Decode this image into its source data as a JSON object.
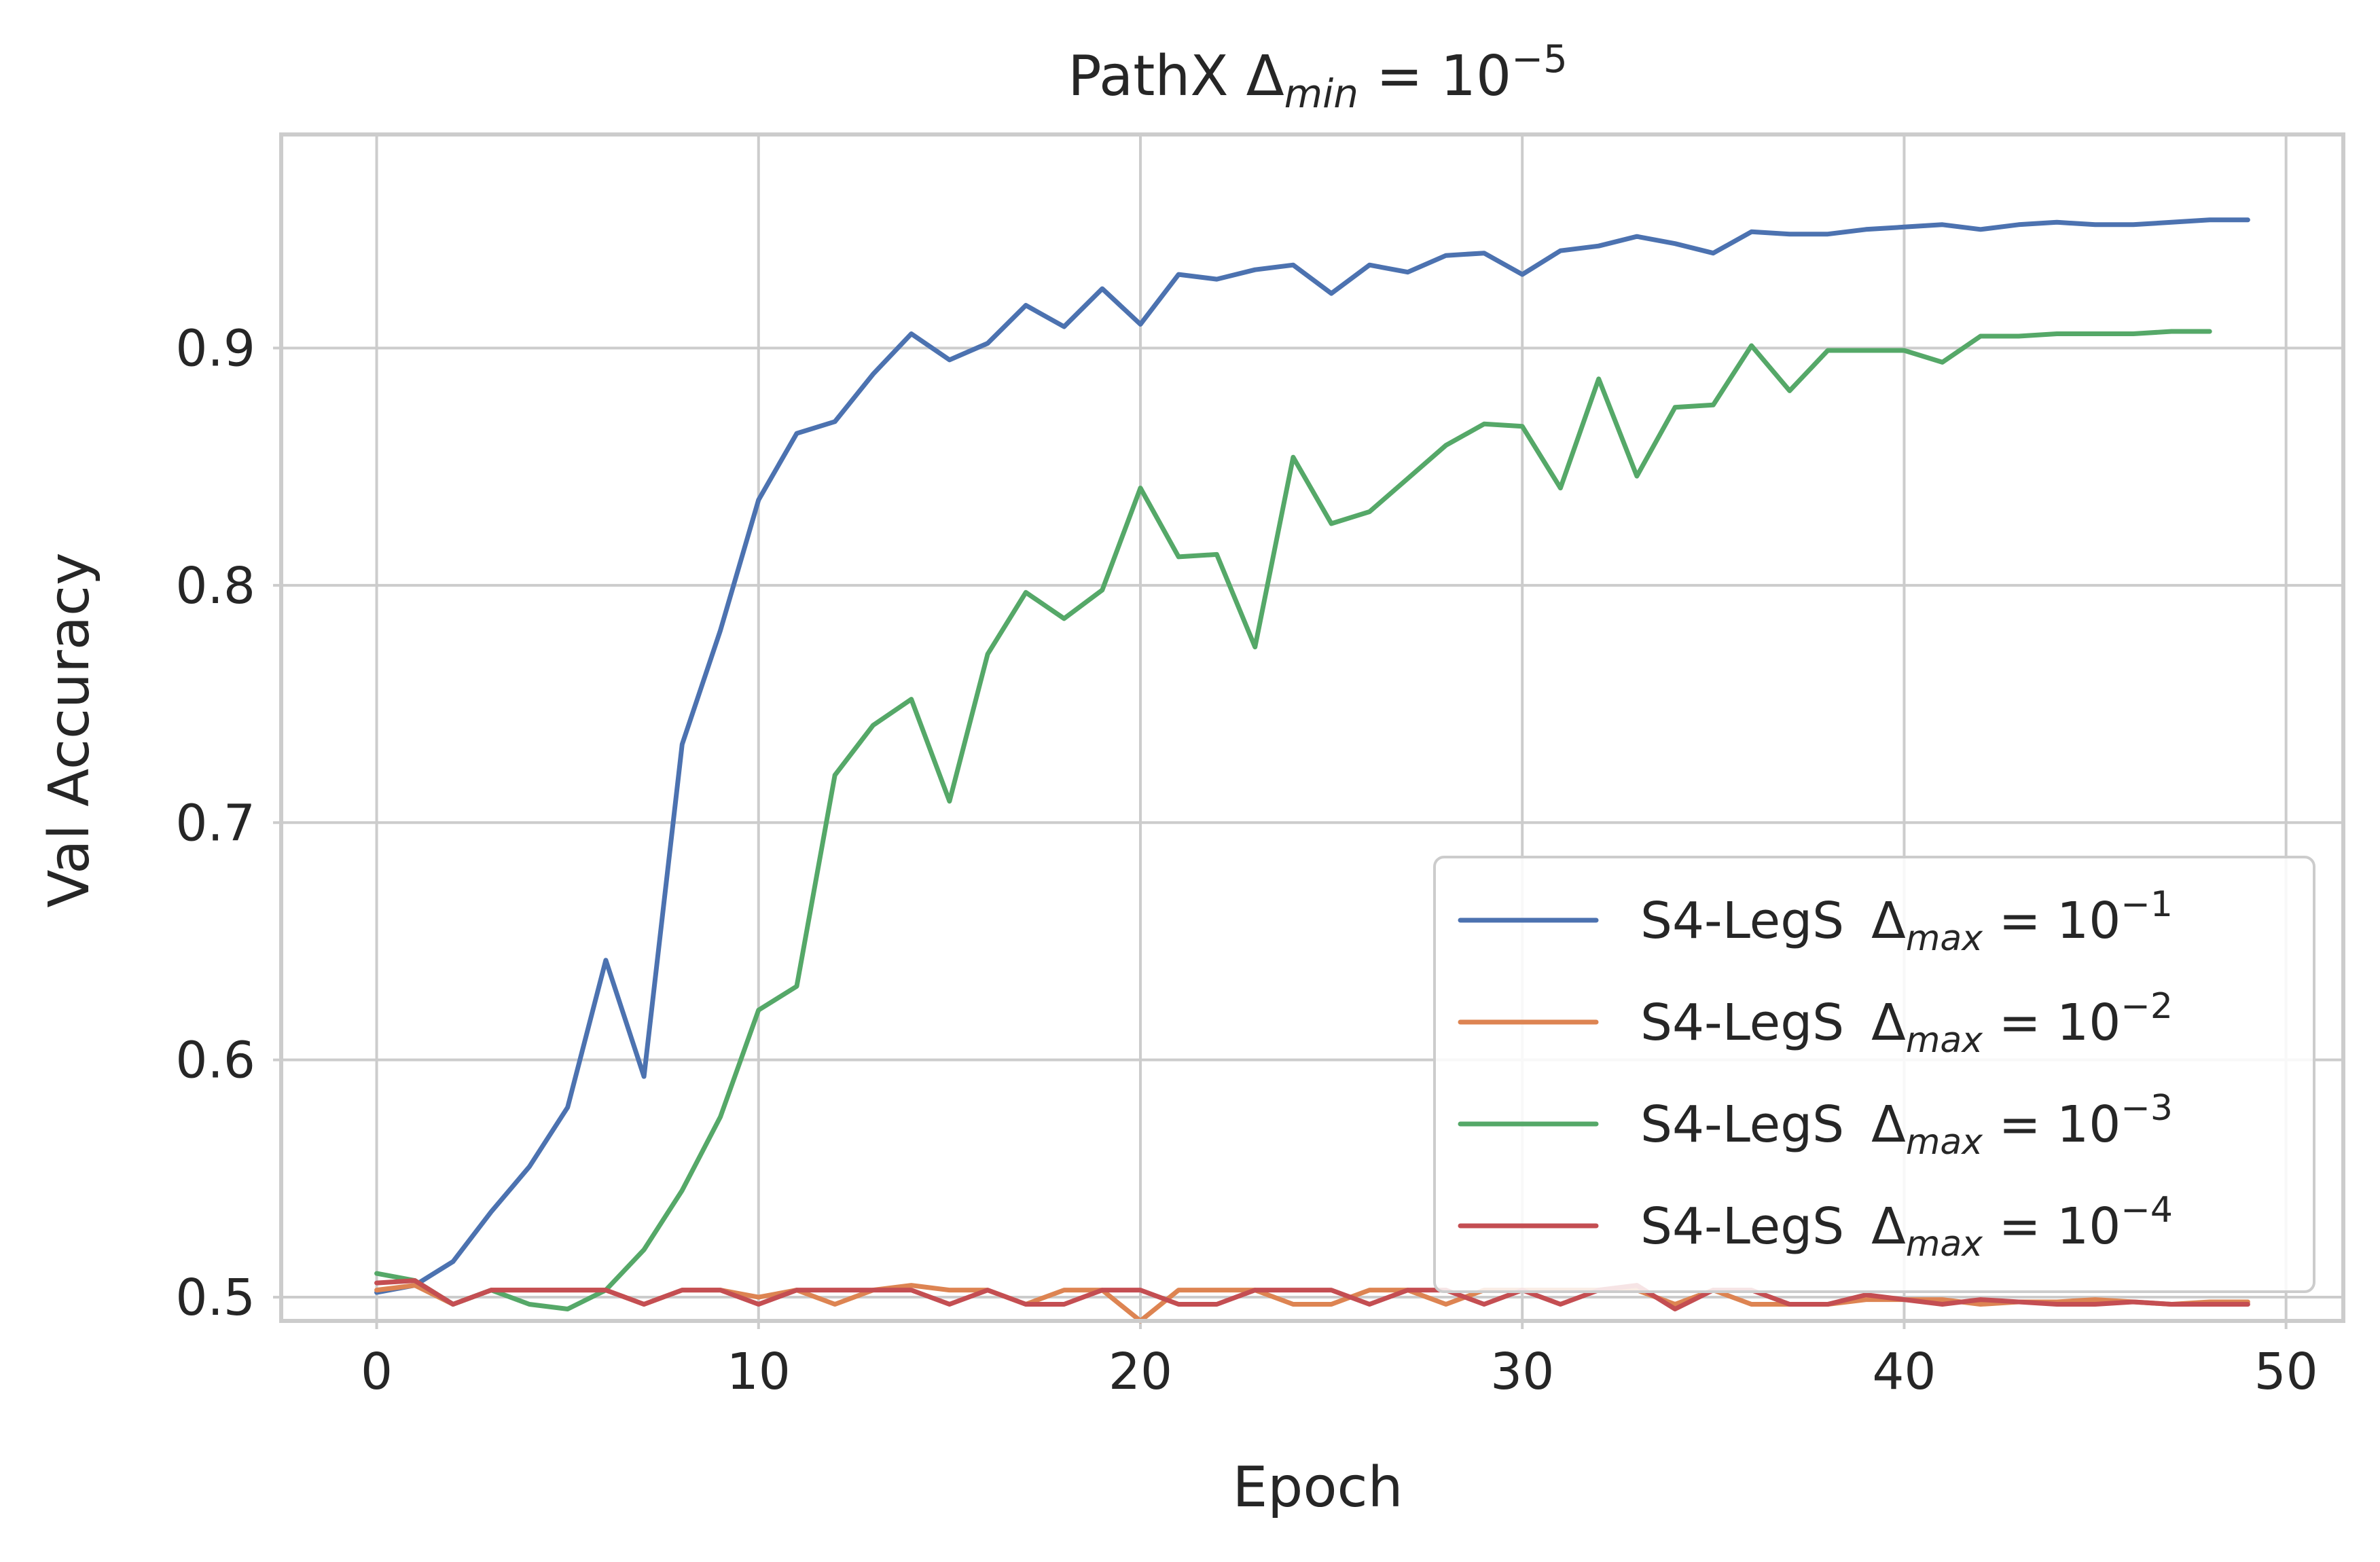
{
  "chart_data": {
    "type": "line",
    "title": "PathX Δ",
    "title_sub": "min",
    "title_eq": " = 10",
    "title_exp": "−5",
    "xlabel": "Epoch",
    "ylabel": "Val Accuracy",
    "xlim": [
      -2.5,
      51.5
    ],
    "ylim": [
      0.49,
      0.99
    ],
    "xticks": [
      0,
      10,
      20,
      30,
      40,
      50
    ],
    "xtick_labels": [
      "0",
      "10",
      "20",
      "30",
      "40",
      "50"
    ],
    "yticks": [
      0.5,
      0.6,
      0.7,
      0.8,
      0.9
    ],
    "ytick_labels": [
      "0.5",
      "0.6",
      "0.7",
      "0.8",
      "0.9"
    ],
    "grid": true,
    "legend_position": "bottom-right",
    "series": [
      {
        "name": "S4-LegS",
        "label_delta": "Δ",
        "label_sub": "max",
        "label_eq": " = 10",
        "label_exp": "−1",
        "color": "#4c72b0",
        "x": [
          0,
          1,
          2,
          3,
          4,
          5,
          6,
          7,
          8,
          9,
          10,
          11,
          12,
          13,
          14,
          15,
          16,
          17,
          18,
          19,
          20,
          21,
          22,
          23,
          24,
          25,
          26,
          27,
          28,
          29,
          30,
          31,
          32,
          33,
          34,
          35,
          36,
          37,
          38,
          39,
          40,
          41,
          42,
          43,
          44,
          45,
          46,
          47,
          48,
          49
        ],
        "y": [
          0.502,
          0.505,
          0.515,
          0.536,
          0.555,
          0.58,
          0.642,
          0.593,
          0.733,
          0.781,
          0.836,
          0.864,
          0.869,
          0.889,
          0.906,
          0.895,
          0.902,
          0.918,
          0.909,
          0.925,
          0.91,
          0.931,
          0.929,
          0.933,
          0.935,
          0.923,
          0.935,
          0.932,
          0.939,
          0.94,
          0.931,
          0.941,
          0.943,
          0.947,
          0.944,
          0.94,
          0.949,
          0.948,
          0.948,
          0.95,
          0.951,
          0.952,
          0.95,
          0.952,
          0.953,
          0.952,
          0.952,
          0.953,
          0.954,
          0.954
        ]
      },
      {
        "name": "S4-LegS",
        "label_delta": "Δ",
        "label_sub": "max",
        "label_eq": " = 10",
        "label_exp": "−2",
        "color": "#dd8452",
        "x": [
          0,
          1,
          2,
          3,
          4,
          5,
          6,
          7,
          8,
          9,
          10,
          11,
          12,
          13,
          14,
          15,
          16,
          17,
          18,
          19,
          20,
          21,
          22,
          23,
          24,
          25,
          26,
          27,
          28,
          29,
          30,
          31,
          32,
          33,
          34,
          35,
          36,
          37,
          38,
          39,
          40,
          41,
          42,
          43,
          44,
          45,
          46,
          47,
          48,
          49
        ],
        "y": [
          0.503,
          0.505,
          0.497,
          0.503,
          0.503,
          0.503,
          0.503,
          0.497,
          0.503,
          0.503,
          0.5,
          0.503,
          0.497,
          0.503,
          0.505,
          0.503,
          0.503,
          0.497,
          0.503,
          0.503,
          0.49,
          0.503,
          0.503,
          0.503,
          0.497,
          0.497,
          0.503,
          0.503,
          0.497,
          0.503,
          0.503,
          0.503,
          0.503,
          0.503,
          0.497,
          0.503,
          0.497,
          0.497,
          0.497,
          0.499,
          0.499,
          0.499,
          0.497,
          0.498,
          0.498,
          0.499,
          0.498,
          0.497,
          0.498,
          0.498
        ]
      },
      {
        "name": "S4-LegS",
        "label_delta": "Δ",
        "label_sub": "max",
        "label_eq": " = 10",
        "label_exp": "−3",
        "color": "#55a868",
        "x": [
          0,
          1,
          2,
          3,
          4,
          5,
          6,
          7,
          8,
          9,
          10,
          11,
          12,
          13,
          14,
          15,
          16,
          17,
          18,
          19,
          20,
          21,
          22,
          23,
          24,
          25,
          26,
          27,
          28,
          29,
          30,
          31,
          32,
          33,
          34,
          35,
          36,
          37,
          38,
          39,
          40,
          41,
          42,
          43,
          44,
          45,
          46,
          47,
          48
        ],
        "y": [
          0.51,
          0.507,
          0.497,
          0.503,
          0.497,
          0.495,
          0.503,
          0.52,
          0.545,
          0.576,
          0.621,
          0.631,
          0.72,
          0.741,
          0.752,
          0.709,
          0.771,
          0.797,
          0.786,
          0.798,
          0.841,
          0.812,
          0.813,
          0.774,
          0.854,
          0.826,
          0.831,
          0.845,
          0.859,
          0.868,
          0.867,
          0.841,
          0.887,
          0.846,
          0.875,
          0.876,
          0.901,
          0.882,
          0.899,
          0.899,
          0.899,
          0.894,
          0.905,
          0.905,
          0.906,
          0.906,
          0.906,
          0.907,
          0.907
        ]
      },
      {
        "name": "S4-LegS",
        "label_delta": "Δ",
        "label_sub": "max",
        "label_eq": " = 10",
        "label_exp": "−4",
        "color": "#c44e52",
        "x": [
          0,
          1,
          2,
          3,
          4,
          5,
          6,
          7,
          8,
          9,
          10,
          11,
          12,
          13,
          14,
          15,
          16,
          17,
          18,
          19,
          20,
          21,
          22,
          23,
          24,
          25,
          26,
          27,
          28,
          29,
          30,
          31,
          32,
          33,
          34,
          35,
          36,
          37,
          38,
          39,
          40,
          41,
          42,
          43,
          44,
          45,
          46,
          47,
          48,
          49
        ],
        "y": [
          0.506,
          0.507,
          0.497,
          0.503,
          0.503,
          0.503,
          0.503,
          0.497,
          0.503,
          0.503,
          0.497,
          0.503,
          0.503,
          0.503,
          0.503,
          0.497,
          0.503,
          0.497,
          0.497,
          0.503,
          0.503,
          0.497,
          0.497,
          0.503,
          0.503,
          0.503,
          0.497,
          0.503,
          0.503,
          0.497,
          0.503,
          0.497,
          0.503,
          0.505,
          0.495,
          0.503,
          0.503,
          0.497,
          0.497,
          0.501,
          0.499,
          0.497,
          0.499,
          0.498,
          0.497,
          0.497,
          0.498,
          0.497,
          0.497,
          0.497
        ]
      }
    ]
  }
}
